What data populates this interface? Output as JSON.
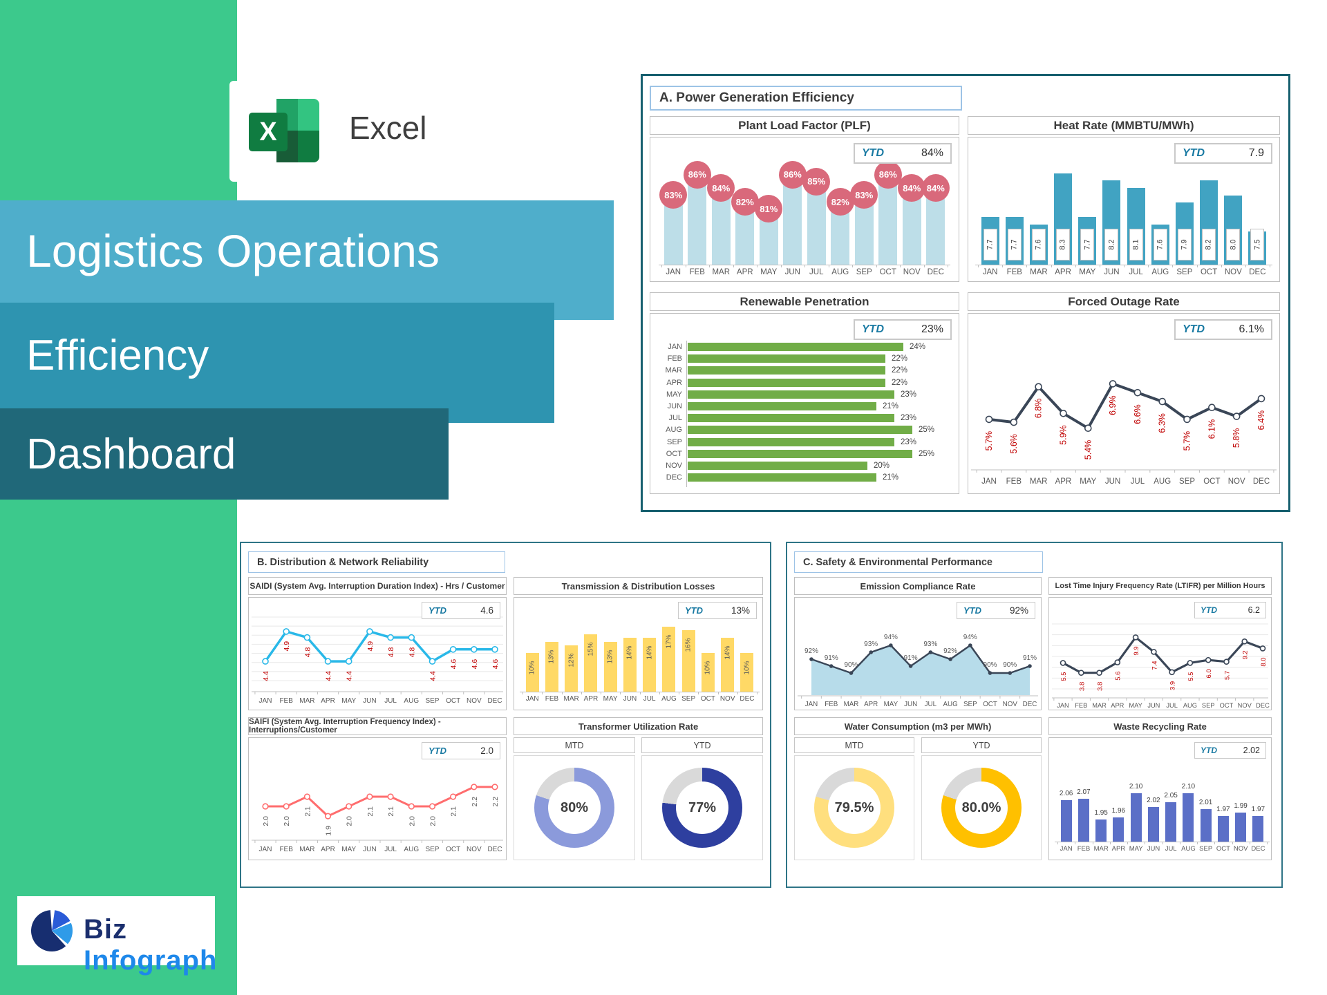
{
  "brand": {
    "excel_label": "Excel",
    "excel_x": "X",
    "biz_prefix": "Biz",
    "biz_suffix": "Infograph"
  },
  "title": {
    "line1": "Logistics Operations",
    "line2": "Efficiency",
    "line3": "Dashboard"
  },
  "panels": {
    "a": {
      "header": "A. Power Generation Efficiency"
    },
    "b": {
      "header": "B. Distribution & Network Reliability"
    },
    "c": {
      "header": "C. Safety & Environmental Performance"
    }
  },
  "chart_data": [
    {
      "id": "plf",
      "type": "column",
      "title": "Plant Load Factor (PLF)",
      "ytd_label": "YTD",
      "ytd": "84%",
      "categories": [
        "JAN",
        "FEB",
        "MAR",
        "APR",
        "MAY",
        "JUN",
        "JUL",
        "AUG",
        "SEP",
        "OCT",
        "NOV",
        "DEC"
      ],
      "values": [
        83,
        86,
        84,
        82,
        81,
        86,
        85,
        82,
        83,
        86,
        84,
        84
      ],
      "labels": [
        "83%",
        "86%",
        "84%",
        "82%",
        "81%",
        "86%",
        "85%",
        "82%",
        "83%",
        "86%",
        "84%",
        "84%"
      ],
      "ylim": [
        74,
        88
      ],
      "colors": {
        "bar": "#BDDEE8",
        "bubble": "#D9697B"
      }
    },
    {
      "id": "heat",
      "type": "column",
      "title": "Heat Rate (MMBTU/MWh)",
      "ytd_label": "YTD",
      "ytd": "7.9",
      "categories": [
        "JAN",
        "FEB",
        "MAR",
        "APR",
        "MAY",
        "JUN",
        "JUL",
        "AUG",
        "SEP",
        "OCT",
        "NOV",
        "DEC"
      ],
      "values": [
        7.7,
        7.7,
        7.6,
        8.3,
        7.7,
        8.2,
        8.1,
        7.6,
        7.9,
        8.2,
        8.0,
        7.5
      ],
      "labels": [
        "7.7",
        "7.7",
        "7.6",
        "8.3",
        "7.7",
        "8.2",
        "8.1",
        "7.6",
        "7.9",
        "8.2",
        "8.0",
        "7.5"
      ],
      "ylim": [
        7.05,
        8.45
      ],
      "colors": {
        "bar": "#41A3C2",
        "label": "#3F3F3F"
      }
    },
    {
      "id": "renewable",
      "type": "barh",
      "title": "Renewable Penetration",
      "ytd_label": "YTD",
      "ytd": "23%",
      "categories": [
        "JAN",
        "FEB",
        "MAR",
        "APR",
        "MAY",
        "JUN",
        "JUL",
        "AUG",
        "SEP",
        "OCT",
        "NOV",
        "DEC"
      ],
      "values": [
        24,
        22,
        22,
        22,
        23,
        21,
        23,
        25,
        23,
        25,
        20,
        21
      ],
      "labels": [
        "24%",
        "22%",
        "22%",
        "22%",
        "23%",
        "21%",
        "23%",
        "25%",
        "23%",
        "25%",
        "20%",
        "21%"
      ],
      "ylim": [
        0,
        26
      ],
      "colors": {
        "bar": "#71AD47",
        "label": "#404040"
      }
    },
    {
      "id": "forced",
      "type": "line",
      "title": "Forced Outage Rate",
      "ytd_label": "YTD",
      "ytd": "6.1%",
      "categories": [
        "JAN",
        "FEB",
        "MAR",
        "APR",
        "MAY",
        "JUN",
        "JUL",
        "AUG",
        "SEP",
        "OCT",
        "NOV",
        "DEC"
      ],
      "values": [
        5.7,
        5.6,
        6.8,
        5.9,
        5.4,
        6.9,
        6.6,
        6.3,
        5.7,
        6.1,
        5.8,
        6.4
      ],
      "labels": [
        "5.7%",
        "5.6%",
        "6.8%",
        "5.9%",
        "5.4%",
        "6.9%",
        "6.6%",
        "6.3%",
        "5.7%",
        "6.1%",
        "5.8%",
        "6.4%"
      ],
      "ylim": [
        4.6,
        7.4
      ],
      "colors": {
        "line": "#3A4657",
        "label": "#C00000"
      }
    },
    {
      "id": "saidi",
      "type": "line",
      "title": "SAIDI (System Avg. Interruption Duration Index) - Hrs / Customer",
      "ytd_label": "YTD",
      "ytd": "4.6",
      "categories": [
        "JAN",
        "FEB",
        "MAR",
        "APR",
        "MAY",
        "JUN",
        "JUL",
        "AUG",
        "SEP",
        "OCT",
        "NOV",
        "DEC"
      ],
      "values": [
        4.4,
        4.9,
        4.8,
        4.4,
        4.4,
        4.9,
        4.8,
        4.8,
        4.4,
        4.6,
        4.6,
        4.6
      ],
      "labels": [
        "4.4",
        "4.9",
        "4.8",
        "4.4",
        "4.4",
        "4.9",
        "4.8",
        "4.8",
        "4.4",
        "4.6",
        "4.6",
        "4.6"
      ],
      "ylim": [
        4.1,
        5.05
      ],
      "colors": {
        "line": "#29B8E8",
        "label": "#C00000"
      }
    },
    {
      "id": "tdlosses",
      "type": "column",
      "title": "Transmission & Distribution Losses",
      "ytd_label": "YTD",
      "ytd": "13%",
      "categories": [
        "JAN",
        "FEB",
        "MAR",
        "APR",
        "MAY",
        "JUN",
        "JUL",
        "AUG",
        "SEP",
        "OCT",
        "NOV",
        "DEC"
      ],
      "values": [
        10,
        13,
        12,
        15,
        13,
        14,
        14,
        17,
        16,
        10,
        14,
        10
      ],
      "labels": [
        "10%",
        "13%",
        "12%",
        "15%",
        "13%",
        "14%",
        "14%",
        "17%",
        "16%",
        "10%",
        "14%",
        "10%"
      ],
      "ylim": [
        0,
        18
      ],
      "colors": {
        "bar": "#FFD966",
        "label": "#595959"
      }
    },
    {
      "id": "saifi",
      "type": "line",
      "title": "SAIFI (System Avg. Interruption Frequency Index) - Interruptions/Customer",
      "ytd_label": "YTD",
      "ytd": "2.0",
      "categories": [
        "JAN",
        "FEB",
        "MAR",
        "APR",
        "MAY",
        "JUN",
        "JUL",
        "AUG",
        "SEP",
        "OCT",
        "NOV",
        "DEC"
      ],
      "values": [
        2.0,
        2.0,
        2.1,
        1.9,
        2.0,
        2.1,
        2.1,
        2.0,
        2.0,
        2.1,
        2.2,
        2.2
      ],
      "labels": [
        "2.0",
        "2.0",
        "2.1",
        "1.9",
        "2.0",
        "2.1",
        "2.1",
        "2.0",
        "2.0",
        "2.1",
        "2.2",
        "2.2"
      ],
      "ylim": [
        1.78,
        2.32
      ],
      "colors": {
        "line": "#FF6D6E",
        "label": "#595959"
      }
    },
    {
      "id": "transformer",
      "type": "donut-pair",
      "title": "Transformer Utilization Rate",
      "rest_color": "#D9D9D9",
      "items": [
        {
          "label": "MTD",
          "display": "80%",
          "pct": 80,
          "color": "#8B9ADB"
        },
        {
          "label": "YTD",
          "display": "77%",
          "pct": 77,
          "color": "#2E3F9F"
        }
      ]
    },
    {
      "id": "emission",
      "type": "area",
      "title": "Emission Compliance Rate",
      "ytd_label": "YTD",
      "ytd": "92%",
      "categories": [
        "JAN",
        "FEB",
        "MAR",
        "APR",
        "MAY",
        "JUN",
        "JUL",
        "AUG",
        "SEP",
        "OCT",
        "NOV",
        "DEC"
      ],
      "values": [
        92,
        91,
        90,
        93,
        94,
        91,
        93,
        92,
        94,
        90,
        90,
        91
      ],
      "labels": [
        "92%",
        "91%",
        "90%",
        "93%",
        "94%",
        "91%",
        "93%",
        "92%",
        "94%",
        "90%",
        "90%",
        "91%"
      ],
      "ylim": [
        88.5,
        95.5
      ],
      "colors": {
        "area": "#B7DCEA",
        "line": "#3A4657",
        "label": "#595959"
      }
    },
    {
      "id": "ltifr",
      "type": "line",
      "title": "Lost Time Injury Frequency Rate (LTIFR) per Million Hours",
      "ytd_label": "YTD",
      "ytd": "6.2",
      "categories": [
        "JAN",
        "FEB",
        "MAR",
        "APR",
        "MAY",
        "JUN",
        "JUL",
        "AUG",
        "SEP",
        "OCT",
        "NOV",
        "DEC"
      ],
      "values": [
        5.5,
        3.8,
        3.8,
        5.6,
        9.9,
        7.4,
        3.9,
        5.5,
        6.0,
        5.7,
        9.2,
        8.0
      ],
      "labels": [
        "5.5",
        "3.8",
        "3.8",
        "5.6",
        "9.9",
        "7.4",
        "3.9",
        "5.5",
        "6.0",
        "5.7",
        "9.2",
        "8.0"
      ],
      "ylim": [
        1.5,
        11.5
      ],
      "colors": {
        "line": "#3A4657",
        "label": "#C00000"
      }
    },
    {
      "id": "water",
      "type": "donut-pair",
      "title": "Water Consumption (m3 per MWh)",
      "rest_color": "#D9D9D9",
      "items": [
        {
          "label": "MTD",
          "display": "79.5%",
          "pct": 79.5,
          "color": "#FFDF7E"
        },
        {
          "label": "YTD",
          "display": "80.0%",
          "pct": 80,
          "color": "#FFC000"
        }
      ]
    },
    {
      "id": "waste",
      "type": "column",
      "title": "Waste Recycling Rate",
      "ytd_label": "YTD",
      "ytd": "2.02",
      "categories": [
        "JAN",
        "FEB",
        "MAR",
        "APR",
        "MAY",
        "JUN",
        "JUL",
        "AUG",
        "SEP",
        "OCT",
        "NOV",
        "DEC"
      ],
      "values": [
        2.06,
        2.07,
        1.95,
        1.96,
        2.1,
        2.02,
        2.05,
        2.1,
        2.01,
        1.97,
        1.99,
        1.97
      ],
      "labels": [
        "2.06",
        "2.07",
        "1.95",
        "1.96",
        "2.10",
        "2.02",
        "2.05",
        "2.10",
        "2.01",
        "1.97",
        "1.99",
        "1.97"
      ],
      "ylim": [
        1.82,
        2.22
      ],
      "colors": {
        "bar": "#5B6FC7",
        "label": "#404040"
      }
    }
  ]
}
